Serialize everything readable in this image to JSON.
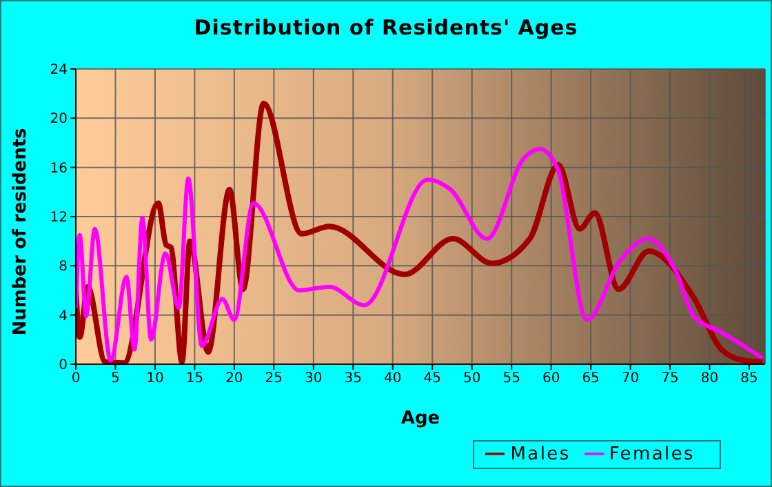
{
  "chart_data": {
    "type": "line",
    "title": "Distribution of Residents' Ages",
    "xlabel": "Age",
    "ylabel": "Number of residents",
    "xlim": [
      0,
      87
    ],
    "xticks": [
      0,
      5,
      10,
      15,
      20,
      25,
      30,
      35,
      40,
      45,
      50,
      55,
      60,
      65,
      70,
      75,
      80,
      85
    ],
    "ylim": [
      0,
      24
    ],
    "yticks": [
      0,
      4,
      8,
      12,
      16,
      20,
      24
    ],
    "grid": true,
    "legend": "bottom right",
    "marker": "none",
    "line_style": "solid",
    "series": [
      {
        "name": "Males",
        "color": "#a00000",
        "x": [
          0,
          0.5,
          1.5,
          3.7,
          6.1,
          10.4,
          11.4,
          12,
          13.4,
          14.4,
          16.7,
          19.4,
          21.1,
          23.7,
          28.5,
          32,
          41.5,
          47.6,
          52.5,
          57.3,
          60.9,
          63.6,
          65.5,
          68.5,
          72.3,
          78,
          81.5,
          84.4,
          86.7
        ],
        "values": [
          6,
          2.2,
          6.3,
          0.2,
          0.1,
          13.1,
          9.7,
          9.5,
          0.2,
          10,
          1,
          14.2,
          6.1,
          21.2,
          10.6,
          11.2,
          7.3,
          10.2,
          8.2,
          10.2,
          16.2,
          11,
          12.3,
          6.1,
          9.2,
          5.4,
          1.2,
          0.3,
          0.2
        ]
      },
      {
        "name": "Females",
        "color": "#ff00ff",
        "x": [
          0,
          0.5,
          1.3,
          2.4,
          4.4,
          6.4,
          7.4,
          8.4,
          9.5,
          11.3,
          13,
          14.2,
          15.9,
          18.5,
          20,
          22.4,
          28.2,
          32,
          36.4,
          44.4,
          47.3,
          51.9,
          56.5,
          58.6,
          60.8,
          64.5,
          68.7,
          72.2,
          75.7,
          78,
          81.5,
          86.7
        ],
        "values": [
          4.6,
          10.5,
          3.9,
          11,
          0.3,
          7.1,
          1.2,
          11.9,
          2,
          9,
          4.6,
          15.1,
          1.5,
          5.3,
          3.6,
          13.1,
          6,
          6.3,
          4.8,
          15,
          14.2,
          10.2,
          16.7,
          17.5,
          15.9,
          3.6,
          8.4,
          10.2,
          7.6,
          3.9,
          2.6,
          0.5
        ]
      }
    ]
  }
}
